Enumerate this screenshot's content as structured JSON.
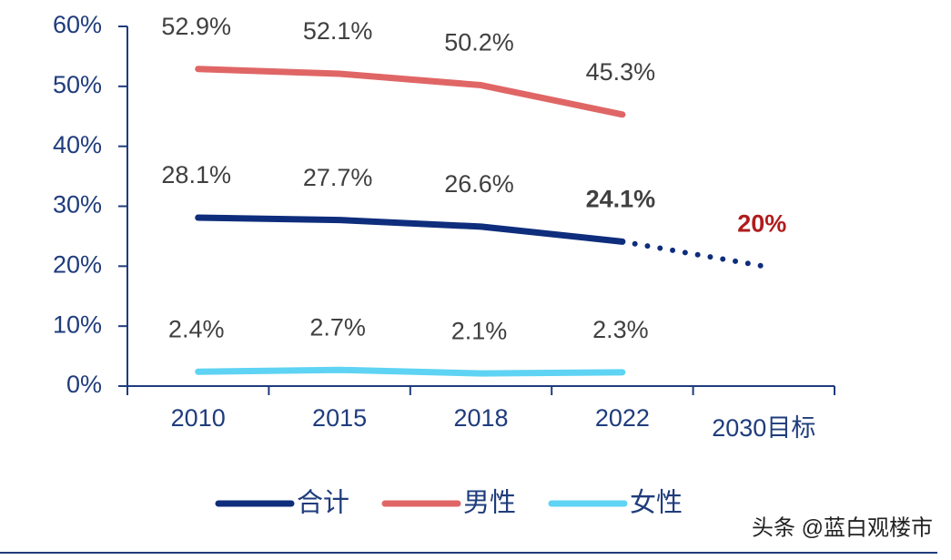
{
  "chart_data": {
    "type": "line",
    "categories": [
      "2010",
      "2015",
      "2018",
      "2022",
      "2030目标"
    ],
    "series": [
      {
        "name": "合计",
        "color": "#0e2d7c",
        "values": [
          28.1,
          27.7,
          26.6,
          24.1,
          20
        ],
        "value_labels": [
          "28.1%",
          "27.7%",
          "26.6%",
          "24.1%",
          "20%"
        ],
        "dotted_after": 3
      },
      {
        "name": "男性",
        "color": "#e06666",
        "values": [
          52.9,
          52.1,
          50.2,
          45.3,
          null
        ],
        "value_labels": [
          "52.9%",
          "52.1%",
          "50.2%",
          "45.3%",
          null
        ]
      },
      {
        "name": "女性",
        "color": "#5fd3f3",
        "values": [
          2.4,
          2.7,
          2.1,
          2.3,
          null
        ],
        "value_labels": [
          "2.4%",
          "2.7%",
          "2.1%",
          "2.3%",
          null
        ]
      }
    ],
    "ylim": [
      0,
      60
    ],
    "yticks": [
      {
        "value": 0,
        "label": "0%"
      },
      {
        "value": 10,
        "label": "10%"
      },
      {
        "value": 20,
        "label": "20%"
      },
      {
        "value": 30,
        "label": "30%"
      },
      {
        "value": 40,
        "label": "40%"
      },
      {
        "value": 50,
        "label": "50%"
      },
      {
        "value": 60,
        "label": "60%"
      }
    ],
    "legend": "bottom",
    "watermark": "头条 @蓝白观楼市"
  }
}
